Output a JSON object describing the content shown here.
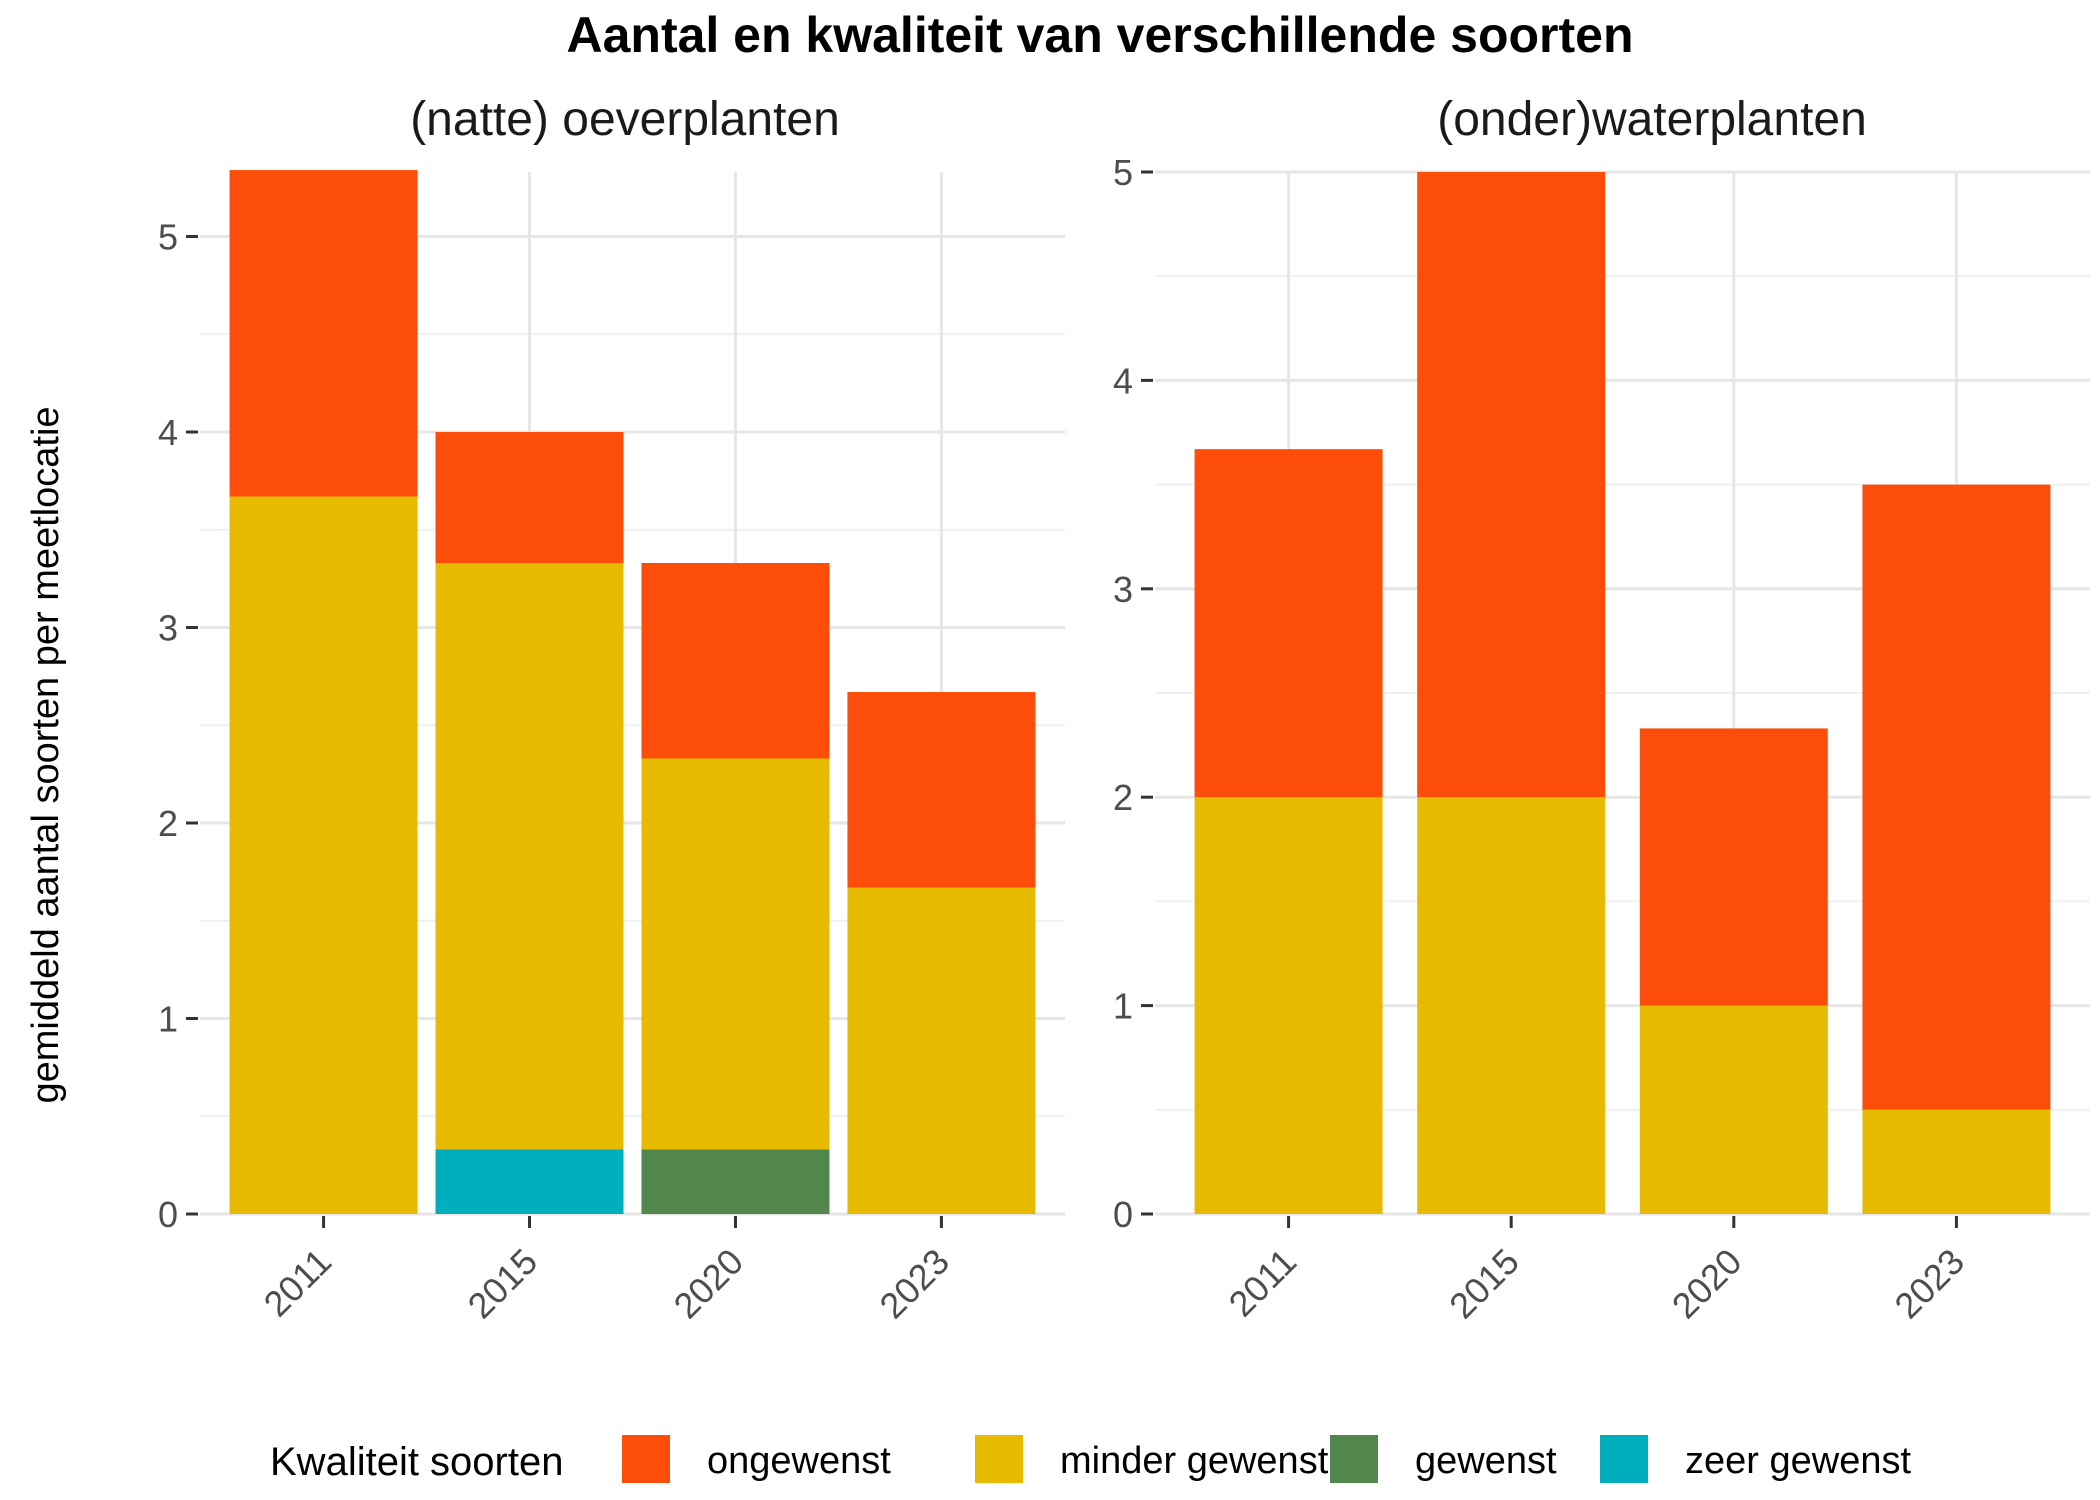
{
  "title": "Aantal en kwaliteit van verschillende soorten",
  "ylabel": "gemiddeld aantal soorten per meetlocatie",
  "legend": {
    "title": "Kwaliteit soorten",
    "items": [
      {
        "label": "ongewenst",
        "color": "#FC4E0A"
      },
      {
        "label": "minder gewenst",
        "color": "#E5BA00"
      },
      {
        "label": "gewenst",
        "color": "#52874C"
      },
      {
        "label": "zeer gewenst",
        "color": "#00AFBB"
      }
    ]
  },
  "chart_data": [
    {
      "type": "bar",
      "stacked": true,
      "title": "(natte) oeverplanten",
      "categories": [
        "2011",
        "2015",
        "2020",
        "2023"
      ],
      "ylim": [
        0,
        5.33
      ],
      "yticks": [
        0,
        1,
        2,
        3,
        4,
        5
      ],
      "series": [
        {
          "name": "zeer gewenst",
          "color": "#00AFBB",
          "values": [
            0,
            0.33,
            0,
            0
          ]
        },
        {
          "name": "gewenst",
          "color": "#52874C",
          "values": [
            0,
            0,
            0.33,
            0
          ]
        },
        {
          "name": "minder gewenst",
          "color": "#E5BA00",
          "values": [
            3.67,
            3.0,
            2.0,
            1.67
          ]
        },
        {
          "name": "ongewenst",
          "color": "#FC4E0A",
          "values": [
            1.67,
            0.67,
            1.0,
            1.0
          ]
        }
      ]
    },
    {
      "type": "bar",
      "stacked": true,
      "title": "(onder)waterplanten",
      "categories": [
        "2011",
        "2015",
        "2020",
        "2023"
      ],
      "ylim": [
        0,
        5
      ],
      "yticks": [
        0,
        1,
        2,
        3,
        4,
        5
      ],
      "series": [
        {
          "name": "zeer gewenst",
          "color": "#00AFBB",
          "values": [
            0,
            0,
            0,
            0
          ]
        },
        {
          "name": "gewenst",
          "color": "#52874C",
          "values": [
            0,
            0,
            0,
            0
          ]
        },
        {
          "name": "minder gewenst",
          "color": "#E5BA00",
          "values": [
            2.0,
            2.0,
            1.0,
            0.5
          ]
        },
        {
          "name": "ongewenst",
          "color": "#FC4E0A",
          "values": [
            1.67,
            3.0,
            1.33,
            3.0
          ]
        }
      ]
    }
  ]
}
